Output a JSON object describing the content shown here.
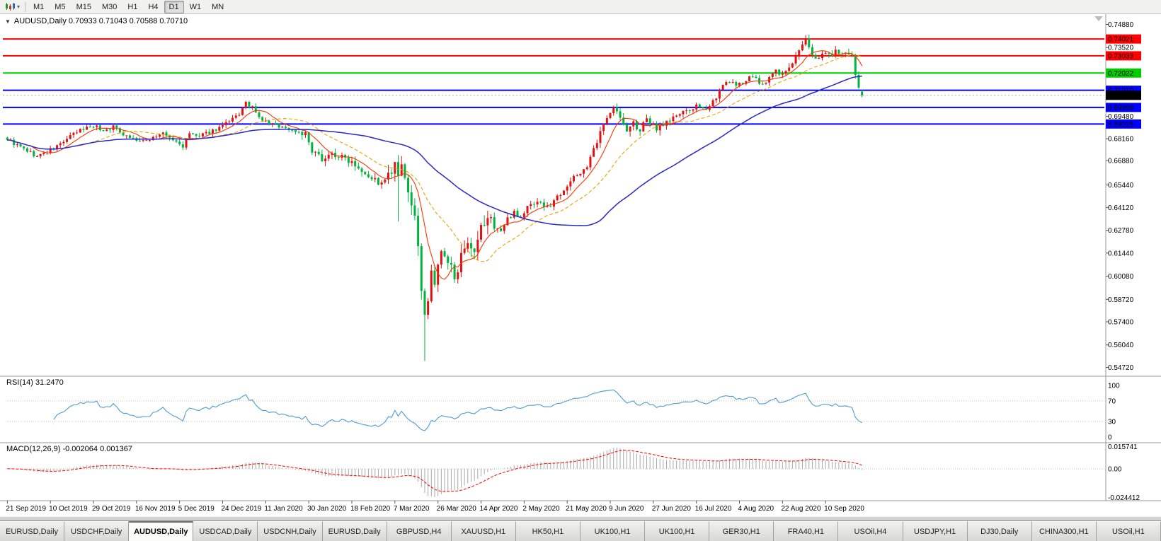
{
  "toolbar": {
    "timeframes": [
      {
        "label": "M1",
        "active": false
      },
      {
        "label": "M5",
        "active": false
      },
      {
        "label": "M15",
        "active": false
      },
      {
        "label": "M30",
        "active": false
      },
      {
        "label": "H1",
        "active": false
      },
      {
        "label": "H4",
        "active": false
      },
      {
        "label": "D1",
        "active": true
      },
      {
        "label": "W1",
        "active": false
      },
      {
        "label": "MN",
        "active": false
      }
    ]
  },
  "chart": {
    "title": "AUDUSD,Daily  0.70933 0.71043 0.70588 0.70710"
  },
  "rsi_panel": {
    "label": "RSI(14) 31.2470"
  },
  "macd_panel": {
    "label": "MACD(12,26,9) -0.002064 0.001367",
    "levels": [
      "0.015741",
      "0.00",
      "-0.024412"
    ]
  },
  "tabs": [
    {
      "label": "EURUSD,Daily",
      "active": false
    },
    {
      "label": "USDCHF,Daily",
      "active": false
    },
    {
      "label": "AUDUSD,Daily",
      "active": true
    },
    {
      "label": "USDCAD,Daily",
      "active": false
    },
    {
      "label": "USDCNH,Daily",
      "active": false
    },
    {
      "label": "EURUSD,Daily",
      "active": false
    },
    {
      "label": "GBPUSD,H4",
      "active": false
    },
    {
      "label": "XAUUSD,H1",
      "active": false
    },
    {
      "label": "HK50,H1",
      "active": false
    },
    {
      "label": "UK100,H1",
      "active": false
    },
    {
      "label": "UK100,H1",
      "active": false
    },
    {
      "label": "GER30,H1",
      "active": false
    },
    {
      "label": "FRA40,H1",
      "active": false
    },
    {
      "label": "USOil,H4",
      "active": false
    },
    {
      "label": "USDJPY,H1",
      "active": false
    },
    {
      "label": "DJ30,Daily",
      "active": false
    },
    {
      "label": "CHINA300,H1",
      "active": false
    },
    {
      "label": "USOil,H1",
      "active": false
    }
  ],
  "chart_data": {
    "type": "candlestick",
    "symbol": "AUDUSD",
    "timeframe": "Daily",
    "ohlc_current": {
      "open": 0.70933,
      "high": 0.71043,
      "low": 0.70588,
      "close": 0.7071
    },
    "current_price": 0.7071,
    "price_range": [
      0.5445,
      0.7515
    ],
    "y_axis_ticks": [
      0.7488,
      0.7352,
      0.6948,
      0.6816,
      0.6688,
      0.6544,
      0.6412,
      0.6278,
      0.6144,
      0.6008,
      0.5872,
      0.574,
      0.5604,
      0.5472
    ],
    "x_labels": [
      "21 Sep 2019",
      "10 Oct 2019",
      "29 Oct 2019",
      "16 Nov 2019",
      "5 Dec 2019",
      "24 Dec 2019",
      "11 Jan 2020",
      "30 Jan 2020",
      "18 Feb 2020",
      "7 Mar 2020",
      "26 Mar 2020",
      "14 Apr 2020",
      "2 May 2020",
      "21 May 2020",
      "9 Jun 2020",
      "27 Jun 2020",
      "16 Jul 2020",
      "4 Aug 2020",
      "22 Aug 2020",
      "10 Sep 2020"
    ],
    "hlines": [
      {
        "value": 0.74021,
        "label": "0.74021",
        "color": "#ff0000"
      },
      {
        "value": 0.73033,
        "label": "0.73033",
        "color": "#ff0000"
      },
      {
        "value": 0.72022,
        "label": "0.72022",
        "color": "#00cc00"
      },
      {
        "value": 0.7101,
        "label": "0.71010",
        "color": "#0000ff"
      },
      {
        "value": 0.69999,
        "label": "0.69999",
        "color": "#0000ff"
      },
      {
        "value": 0.69025,
        "label": "0.69025",
        "color": "#0000ff"
      }
    ],
    "bars": 259,
    "bars_per_label": 13,
    "seed": 9,
    "price_path": [
      [
        0,
        0.6815
      ],
      [
        3,
        0.6775
      ],
      [
        6,
        0.6745
      ],
      [
        9,
        0.671
      ],
      [
        11,
        0.6732
      ],
      [
        14,
        0.6758
      ],
      [
        17,
        0.68
      ],
      [
        20,
        0.6842
      ],
      [
        23,
        0.6876
      ],
      [
        26,
        0.6896
      ],
      [
        29,
        0.6862
      ],
      [
        32,
        0.6886
      ],
      [
        35,
        0.6846
      ],
      [
        38,
        0.6816
      ],
      [
        41,
        0.6796
      ],
      [
        44,
        0.6826
      ],
      [
        47,
        0.6846
      ],
      [
        50,
        0.6806
      ],
      [
        53,
        0.6772
      ],
      [
        55,
        0.6846
      ],
      [
        58,
        0.6826
      ],
      [
        61,
        0.6856
      ],
      [
        64,
        0.6882
      ],
      [
        67,
        0.6912
      ],
      [
        70,
        0.6962
      ],
      [
        72,
        0.7022
      ],
      [
        74,
        0.6996
      ],
      [
        76,
        0.6936
      ],
      [
        79,
        0.6906
      ],
      [
        82,
        0.6892
      ],
      [
        85,
        0.6872
      ],
      [
        88,
        0.6856
      ],
      [
        90,
        0.6842
      ],
      [
        92,
        0.6732
      ],
      [
        95,
        0.6702
      ],
      [
        98,
        0.6726
      ],
      [
        101,
        0.6706
      ],
      [
        104,
        0.6686
      ],
      [
        107,
        0.6636
      ],
      [
        110,
        0.6586
      ],
      [
        113,
        0.6546
      ],
      [
        115,
        0.6592
      ],
      [
        117,
        0.6646
      ],
      [
        118,
        0.6596
      ],
      [
        119,
        0.6632
      ],
      [
        120,
        0.6562
      ],
      [
        121,
        0.6502
      ],
      [
        122,
        0.6442
      ],
      [
        123,
        0.6332
      ],
      [
        124,
        0.6152
      ],
      [
        125,
        0.5952
      ],
      [
        126,
        0.5792
      ],
      [
        127,
        0.5872
      ],
      [
        128,
        0.6012
      ],
      [
        129,
        0.5962
      ],
      [
        130,
        0.6082
      ],
      [
        131,
        0.6132
      ],
      [
        133,
        0.6082
      ],
      [
        135,
        0.6022
      ],
      [
        137,
        0.6112
      ],
      [
        139,
        0.6172
      ],
      [
        141,
        0.6122
      ],
      [
        143,
        0.6282
      ],
      [
        145,
        0.6352
      ],
      [
        147,
        0.6312
      ],
      [
        149,
        0.6272
      ],
      [
        151,
        0.6342
      ],
      [
        153,
        0.6392
      ],
      [
        155,
        0.6346
      ],
      [
        157,
        0.6416
      ],
      [
        160,
        0.6452
      ],
      [
        163,
        0.6406
      ],
      [
        166,
        0.6476
      ],
      [
        169,
        0.6546
      ],
      [
        172,
        0.6602
      ],
      [
        175,
        0.6656
      ],
      [
        178,
        0.6792
      ],
      [
        181,
        0.6952
      ],
      [
        183,
        0.7012
      ],
      [
        185,
        0.6932
      ],
      [
        187,
        0.6862
      ],
      [
        189,
        0.6906
      ],
      [
        191,
        0.6866
      ],
      [
        193,
        0.6922
      ],
      [
        196,
        0.6882
      ],
      [
        199,
        0.6916
      ],
      [
        202,
        0.6952
      ],
      [
        205,
        0.6976
      ],
      [
        208,
        0.7006
      ],
      [
        210,
        0.6982
      ],
      [
        212,
        0.7016
      ],
      [
        214,
        0.7062
      ],
      [
        216,
        0.7126
      ],
      [
        218,
        0.7156
      ],
      [
        220,
        0.7122
      ],
      [
        222,
        0.7146
      ],
      [
        224,
        0.7186
      ],
      [
        226,
        0.7166
      ],
      [
        228,
        0.7126
      ],
      [
        230,
        0.7176
      ],
      [
        232,
        0.7216
      ],
      [
        234,
        0.7192
      ],
      [
        236,
        0.7236
      ],
      [
        238,
        0.7292
      ],
      [
        240,
        0.7362
      ],
      [
        241,
        0.7392
      ],
      [
        242,
        0.7346
      ],
      [
        244,
        0.7292
      ],
      [
        246,
        0.7322
      ],
      [
        248,
        0.7306
      ],
      [
        250,
        0.7332
      ],
      [
        252,
        0.7312
      ],
      [
        254,
        0.7296
      ],
      [
        255,
        0.7292
      ],
      [
        256,
        0.7196
      ],
      [
        257,
        0.7106
      ],
      [
        258,
        0.7071
      ]
    ],
    "volatility": [
      {
        "to": 87,
        "v": 0.0035
      },
      {
        "to": 114,
        "v": 0.0055
      },
      {
        "to": 147,
        "v": 0.0105
      },
      {
        "to": 177,
        "v": 0.0045
      },
      {
        "to": 200,
        "v": 0.0055
      },
      {
        "to": 235,
        "v": 0.0038
      },
      {
        "to": 258,
        "v": 0.005
      }
    ],
    "spikes": [
      {
        "bar": 118,
        "low": 0.633
      },
      {
        "bar": 126,
        "low": 0.551
      },
      {
        "bar": 241,
        "high": 0.7413
      }
    ],
    "moving_averages": [
      {
        "period": 8,
        "color": "#ff3300",
        "dash": "",
        "width": 1.1
      },
      {
        "period": 21,
        "color": "#e8a400",
        "dash": "5 3",
        "width": 1.1
      },
      {
        "period": 55,
        "color": "#2929c8",
        "dash": "",
        "width": 1.5
      }
    ],
    "rsi": {
      "period": 14,
      "value": 31.247,
      "levels": [
        100,
        70,
        30,
        0
      ],
      "color": "#4f9bd5"
    },
    "macd": {
      "fast": 12,
      "slow": 26,
      "signal": 9,
      "main_value": -0.002064,
      "signal_value": 0.001367,
      "max": 0.015741,
      "min": -0.024412,
      "hist_color": "#a8a8a8",
      "signal_color": "#ff0000"
    },
    "up_color": "#e01212",
    "down_color": "#00b33c"
  }
}
